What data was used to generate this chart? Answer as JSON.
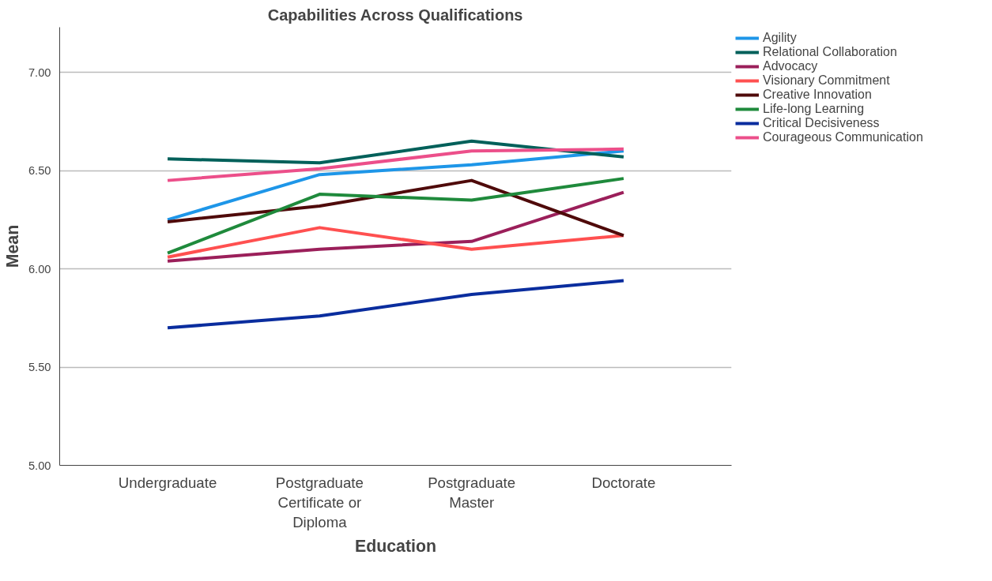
{
  "chart_data": {
    "type": "line",
    "title": "Capabilities Across Qualifications",
    "xlabel": "Education",
    "ylabel": "Mean",
    "categories": [
      "Undergraduate",
      "Postgraduate Certificate or Diploma",
      "Postgraduate Master",
      "Doctorate"
    ],
    "ylim": [
      5.0,
      7.23
    ],
    "yticks": [
      {
        "value": 5.0,
        "label": "5.00"
      },
      {
        "value": 5.5,
        "label": "5.50"
      },
      {
        "value": 6.0,
        "label": "6.00"
      },
      {
        "value": 6.5,
        "label": "6.50"
      },
      {
        "value": 7.0,
        "label": "7.00"
      }
    ],
    "grid": "y",
    "legend": "top right",
    "marker": "none",
    "line_style": "solid",
    "series": [
      {
        "name": "Agility",
        "color": "#1e96e8",
        "values": [
          6.25,
          6.48,
          6.53,
          6.6
        ]
      },
      {
        "name": "Relational Collaboration",
        "color": "#00605a",
        "values": [
          6.56,
          6.54,
          6.65,
          6.57
        ]
      },
      {
        "name": "Advocacy",
        "color": "#9b1f5a",
        "values": [
          6.04,
          6.1,
          6.14,
          6.39
        ]
      },
      {
        "name": "Visionary Commitment",
        "color": "#ff5050",
        "values": [
          6.06,
          6.21,
          6.1,
          6.17
        ]
      },
      {
        "name": "Creative Innovation",
        "color": "#4f0a0a",
        "values": [
          6.24,
          6.32,
          6.45,
          6.17
        ]
      },
      {
        "name": "Life-long Learning",
        "color": "#1f8a3c",
        "values": [
          6.08,
          6.38,
          6.35,
          6.46
        ]
      },
      {
        "name": "Critical Decisiveness",
        "color": "#0a2d9e",
        "values": [
          5.7,
          5.76,
          5.87,
          5.94
        ]
      },
      {
        "name": "Courageous Communication",
        "color": "#ec4f8a",
        "values": [
          6.45,
          6.51,
          6.6,
          6.61
        ]
      }
    ]
  }
}
